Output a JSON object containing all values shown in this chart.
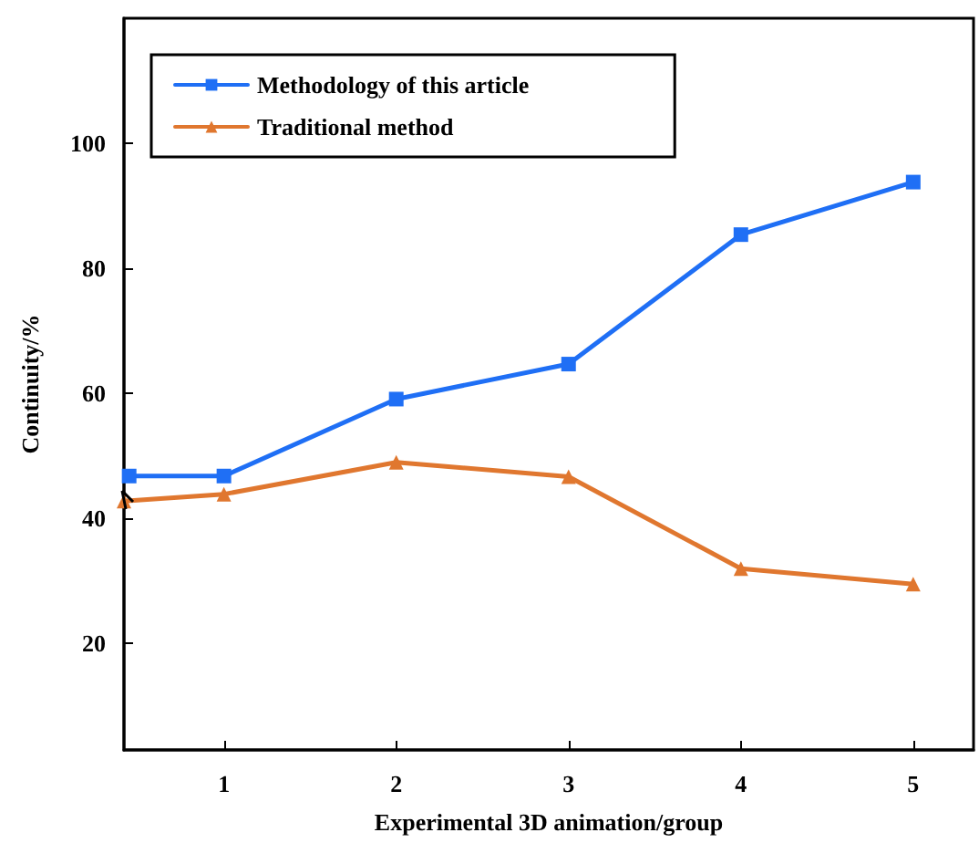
{
  "chart_data": {
    "type": "line",
    "xlabel": "Experimental 3D animation/group",
    "ylabel": "Continuity/%",
    "xlim": [
      0.42,
      5.35
    ],
    "xticks": [
      1,
      2,
      3,
      4,
      5
    ],
    "ylim": [
      3,
      120
    ],
    "yticks": [
      20,
      40,
      60,
      80,
      100
    ],
    "series": [
      {
        "name": "Methodology of this article",
        "color": "#1f6ff5",
        "marker": "square",
        "x": [
          0.45,
          1,
          2,
          3,
          4,
          5
        ],
        "values": [
          46.8,
          46.8,
          59.1,
          64.7,
          85.4,
          93.8
        ]
      },
      {
        "name": "Traditional method",
        "color": "#e0772f",
        "marker": "triangle",
        "x": [
          0.42,
          1,
          2,
          3,
          4,
          5
        ],
        "values": [
          42.8,
          43.9,
          49,
          46.7,
          32,
          29.5
        ]
      }
    ],
    "legend": "top left",
    "grid": false,
    "line_style": "solid"
  }
}
